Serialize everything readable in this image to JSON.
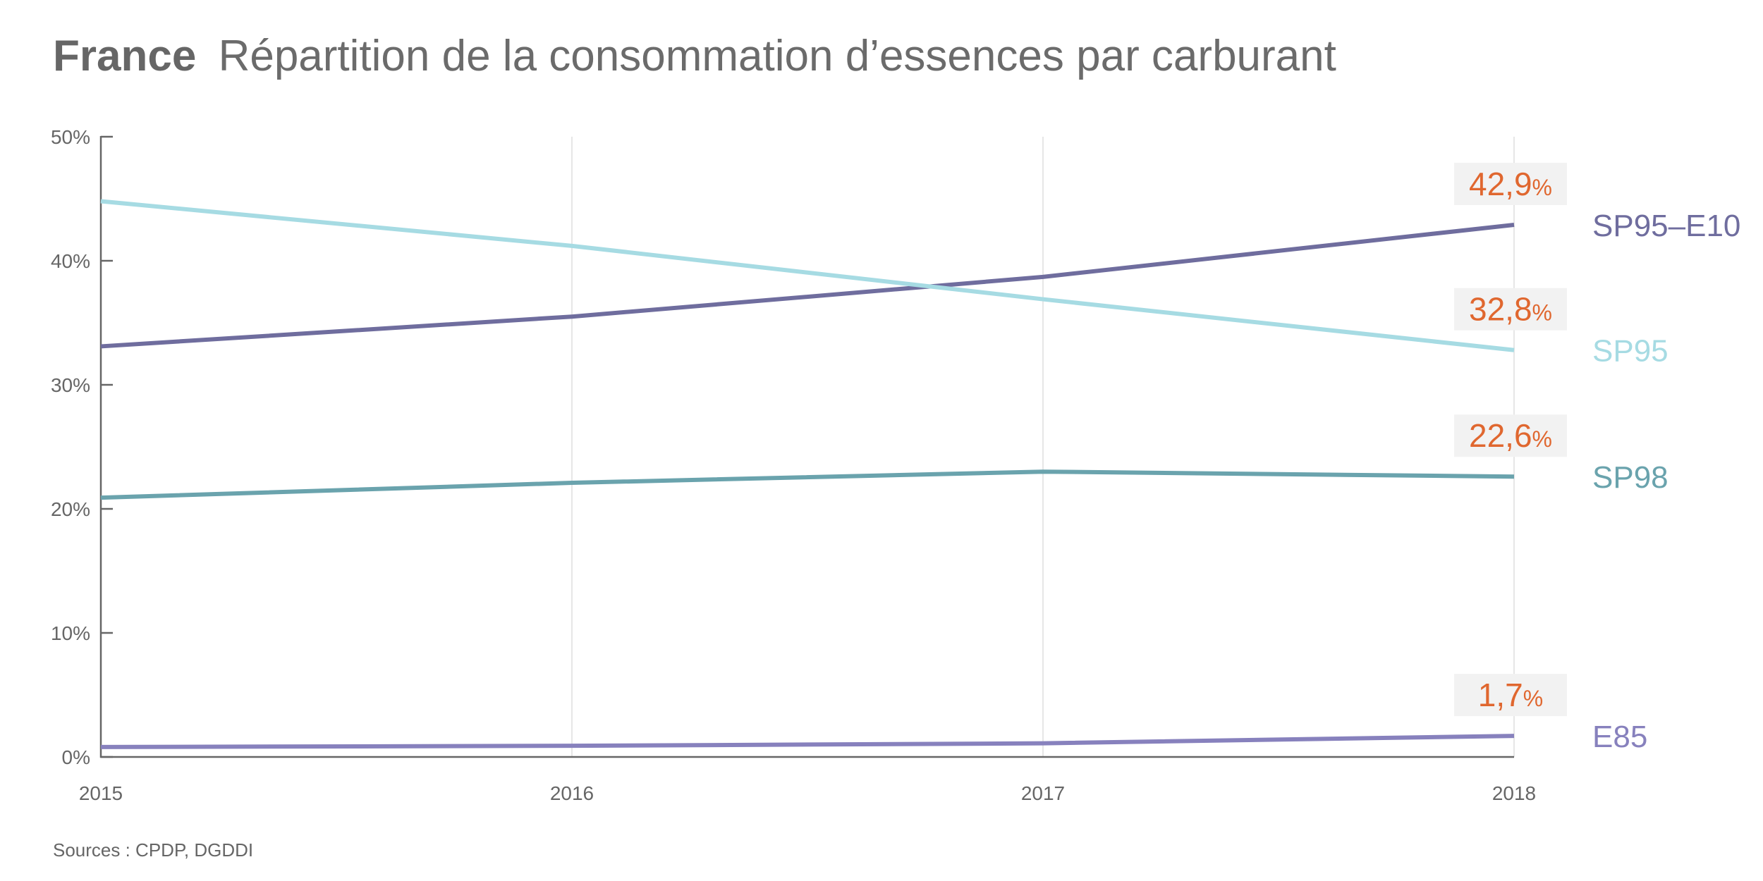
{
  "header": {
    "title_bold": "France",
    "title_rest": "Répartition de la consommation d’essences par carburant"
  },
  "footer": {
    "sources": "Sources : CPDP, DGDDI"
  },
  "colors": {
    "axis": "#666666",
    "grid": "#e6e6e6",
    "value_label": "#e0672f",
    "value_box": "#f2f2f2"
  },
  "chart_data": {
    "type": "line",
    "title": "France Répartition de la consommation d’essences par carburant",
    "xlabel": "",
    "ylabel": "",
    "x": [
      "2015",
      "2016",
      "2017",
      "2018"
    ],
    "ylim": [
      0,
      50
    ],
    "y_ticks": [
      "0%",
      "10%",
      "20%",
      "30%",
      "40%",
      "50%"
    ],
    "y_tick_values": [
      0,
      10,
      20,
      30,
      40,
      50
    ],
    "grid": "vertical",
    "legend": "direct labels at right end of lines",
    "series": [
      {
        "name": "SP95–E10",
        "color": "#6f6d9e",
        "values": [
          33.1,
          35.5,
          38.7,
          42.9
        ],
        "end_label": "42,9",
        "end_unit": "%"
      },
      {
        "name": "SP95",
        "color": "#a6dbe3",
        "values": [
          44.8,
          41.2,
          36.9,
          32.8
        ],
        "end_label": "32,8",
        "end_unit": "%"
      },
      {
        "name": "SP98",
        "color": "#6aa3ad",
        "values": [
          20.9,
          22.1,
          23.0,
          22.6
        ],
        "end_label": "22,6",
        "end_unit": "%"
      },
      {
        "name": "E85",
        "color": "#8781bd",
        "values": [
          0.8,
          0.9,
          1.1,
          1.7
        ],
        "end_label": "1,7",
        "end_unit": "%"
      }
    ]
  }
}
